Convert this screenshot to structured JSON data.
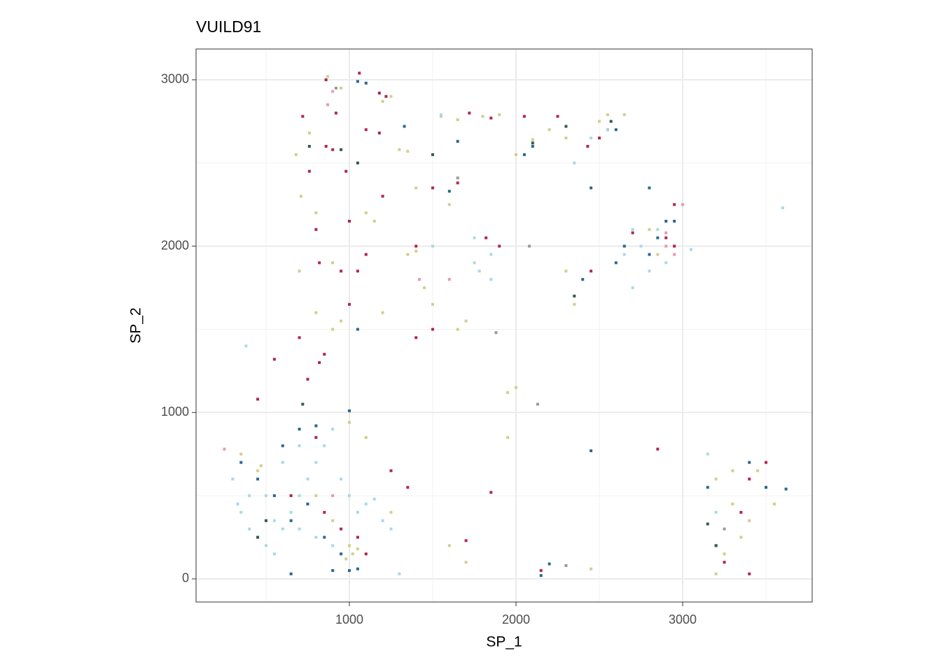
{
  "chart_data": {
    "type": "scatter",
    "title": "VUILD91",
    "x_label": "SP_1",
    "y_label": "SP_2",
    "xlim": [
      80,
      3777
    ],
    "ylim": [
      -139,
      3185
    ],
    "xticks": [
      1000,
      2000,
      3000
    ],
    "yticks": [
      0,
      1000,
      2000,
      3000
    ],
    "xminor": [
      500,
      1500,
      2500,
      3500
    ],
    "yminor": [
      500,
      1500,
      2500
    ],
    "grid": true,
    "series": [
      {
        "color": "#d4cd8d",
        "x": [
          870,
          950,
          1200,
          1250,
          680,
          760,
          1300,
          1350,
          1550,
          1650,
          1800,
          1900,
          2000,
          2100,
          2200,
          2300,
          2500,
          2550,
          2650,
          710,
          800,
          1100,
          1150,
          1400,
          1600,
          700,
          900,
          1350,
          1400,
          1450,
          1500,
          800,
          900,
          950,
          1200,
          1650,
          1700,
          2350,
          2300,
          1950,
          2000,
          1000,
          1100,
          350,
          450,
          470,
          800,
          900,
          1000,
          1020,
          980,
          1050,
          1250,
          1600,
          1700,
          3200,
          3300,
          3450,
          3500,
          3300,
          3400,
          3350,
          3250,
          3200,
          3550,
          1950,
          2850,
          2950,
          2800,
          2450
        ],
        "y": [
          3020,
          2950,
          2870,
          2900,
          2550,
          2680,
          2580,
          2570,
          2780,
          2760,
          2780,
          2790,
          2550,
          2640,
          2700,
          2650,
          2750,
          2790,
          2790,
          2300,
          2200,
          2200,
          2150,
          2350,
          2250,
          1850,
          1900,
          1950,
          1970,
          1750,
          1650,
          1600,
          1500,
          1550,
          1600,
          1500,
          1550,
          1650,
          1850,
          1120,
          1150,
          940,
          850,
          750,
          650,
          680,
          500,
          350,
          200,
          150,
          120,
          180,
          400,
          200,
          100,
          600,
          650,
          650,
          550,
          450,
          350,
          250,
          150,
          30,
          450,
          850,
          1950,
          2000,
          2100,
          60
        ]
      },
      {
        "color": "#b3264a",
        "x": [
          860,
          1060,
          1180,
          1220,
          720,
          920,
          1100,
          1180,
          860,
          900,
          760,
          980,
          1200,
          1500,
          1650,
          1720,
          1850,
          2050,
          2250,
          2500,
          2550,
          2430,
          800,
          1000,
          1100,
          1400,
          1900,
          1820,
          820,
          950,
          1050,
          1000,
          1400,
          1500,
          820,
          850,
          700,
          750,
          450,
          550,
          2900,
          2950,
          2950,
          2700,
          2450,
          800,
          650,
          850,
          950,
          1050,
          1100,
          1250,
          1350,
          1850,
          1700,
          3200,
          3350,
          3400,
          3500,
          3250,
          3400,
          2850,
          2150
        ],
        "y": [
          3000,
          3040,
          2920,
          2900,
          2780,
          2800,
          2700,
          2680,
          2600,
          2580,
          2450,
          2450,
          2300,
          2350,
          2380,
          2800,
          2770,
          2780,
          2780,
          2650,
          2700,
          2600,
          2100,
          2150,
          1950,
          2000,
          2000,
          2050,
          1900,
          1850,
          1850,
          1650,
          1450,
          1500,
          1300,
          1350,
          1450,
          1200,
          1080,
          1320,
          2050,
          2250,
          2000,
          2080,
          1850,
          850,
          500,
          400,
          300,
          250,
          150,
          650,
          550,
          520,
          230,
          200,
          400,
          600,
          700,
          100,
          30,
          780,
          50
        ]
      },
      {
        "color": "#a8dae5",
        "x": [
          300,
          350,
          400,
          450,
          500,
          550,
          600,
          650,
          700,
          750,
          800,
          850,
          900,
          950,
          1000,
          1050,
          1100,
          1150,
          1200,
          1250,
          700,
          800,
          900,
          600,
          700,
          500,
          400,
          380,
          330,
          550,
          1300,
          1550,
          1750,
          1780,
          1850,
          1850,
          2650,
          2700,
          2750,
          2700,
          2800,
          2900,
          3050,
          2850,
          2450,
          2550,
          2350,
          3600,
          3150,
          3200,
          1750,
          1500
        ],
        "y": [
          600,
          400,
          300,
          250,
          200,
          150,
          300,
          400,
          500,
          600,
          700,
          800,
          900,
          600,
          500,
          400,
          450,
          480,
          350,
          300,
          300,
          250,
          200,
          700,
          800,
          500,
          500,
          1400,
          450,
          350,
          30,
          2790,
          1900,
          1850,
          1950,
          1800,
          1950,
          2100,
          2000,
          1750,
          1850,
          1900,
          1980,
          2100,
          2650,
          2700,
          2500,
          2230,
          750,
          400,
          2050,
          2000
        ]
      },
      {
        "color": "#2a6890",
        "x": [
          1050,
          1100,
          1330,
          1650,
          2100,
          2050,
          2600,
          2450,
          2800,
          2650,
          2600,
          2850,
          2900,
          2950,
          2800,
          2400,
          1000,
          600,
          700,
          800,
          350,
          450,
          550,
          650,
          750,
          850,
          950,
          1000,
          650,
          900,
          1050,
          2150,
          2200,
          2450,
          3150,
          3400,
          3500,
          3620,
          1600,
          1050
        ],
        "y": [
          2990,
          2980,
          2720,
          2630,
          2600,
          2550,
          2700,
          2350,
          2350,
          2000,
          1900,
          2050,
          2150,
          2150,
          1950,
          1800,
          1010,
          800,
          900,
          920,
          700,
          600,
          500,
          350,
          450,
          250,
          150,
          50,
          30,
          50,
          60,
          20,
          90,
          770,
          550,
          700,
          550,
          540,
          2330,
          1500
        ]
      },
      {
        "color": "#2f5e48",
        "x": [
          760,
          950,
          1050,
          2100,
          2300,
          2350,
          720,
          500,
          450,
          3150,
          3200,
          2570,
          1500
        ],
        "y": [
          2600,
          2580,
          2500,
          2620,
          2720,
          1700,
          1050,
          350,
          250,
          330,
          200,
          2750,
          2550
        ]
      },
      {
        "color": "#e89aac",
        "x": [
          900,
          870,
          1600,
          2950,
          2900,
          2900,
          3000,
          250,
          900,
          1420
        ],
        "y": [
          2930,
          2850,
          1800,
          1950,
          2000,
          2080,
          2250,
          780,
          500,
          1800
        ]
      },
      {
        "color": "#9a9a9a",
        "x": [
          920,
          1650,
          2130,
          2080,
          3250,
          2300,
          1880
        ],
        "y": [
          2950,
          2410,
          1050,
          2000,
          300,
          80,
          1480
        ]
      }
    ]
  }
}
